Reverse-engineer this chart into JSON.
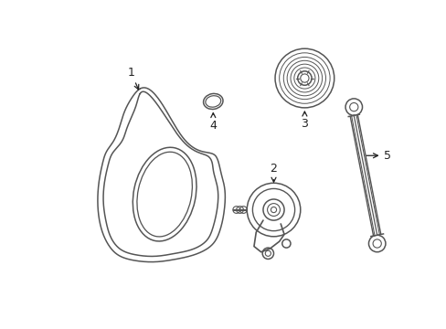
{
  "background_color": "#ffffff",
  "line_color": "#555555",
  "line_width": 1.1,
  "belt_color": "#555555",
  "label_color": "#222222",
  "label_fontsize": 9
}
